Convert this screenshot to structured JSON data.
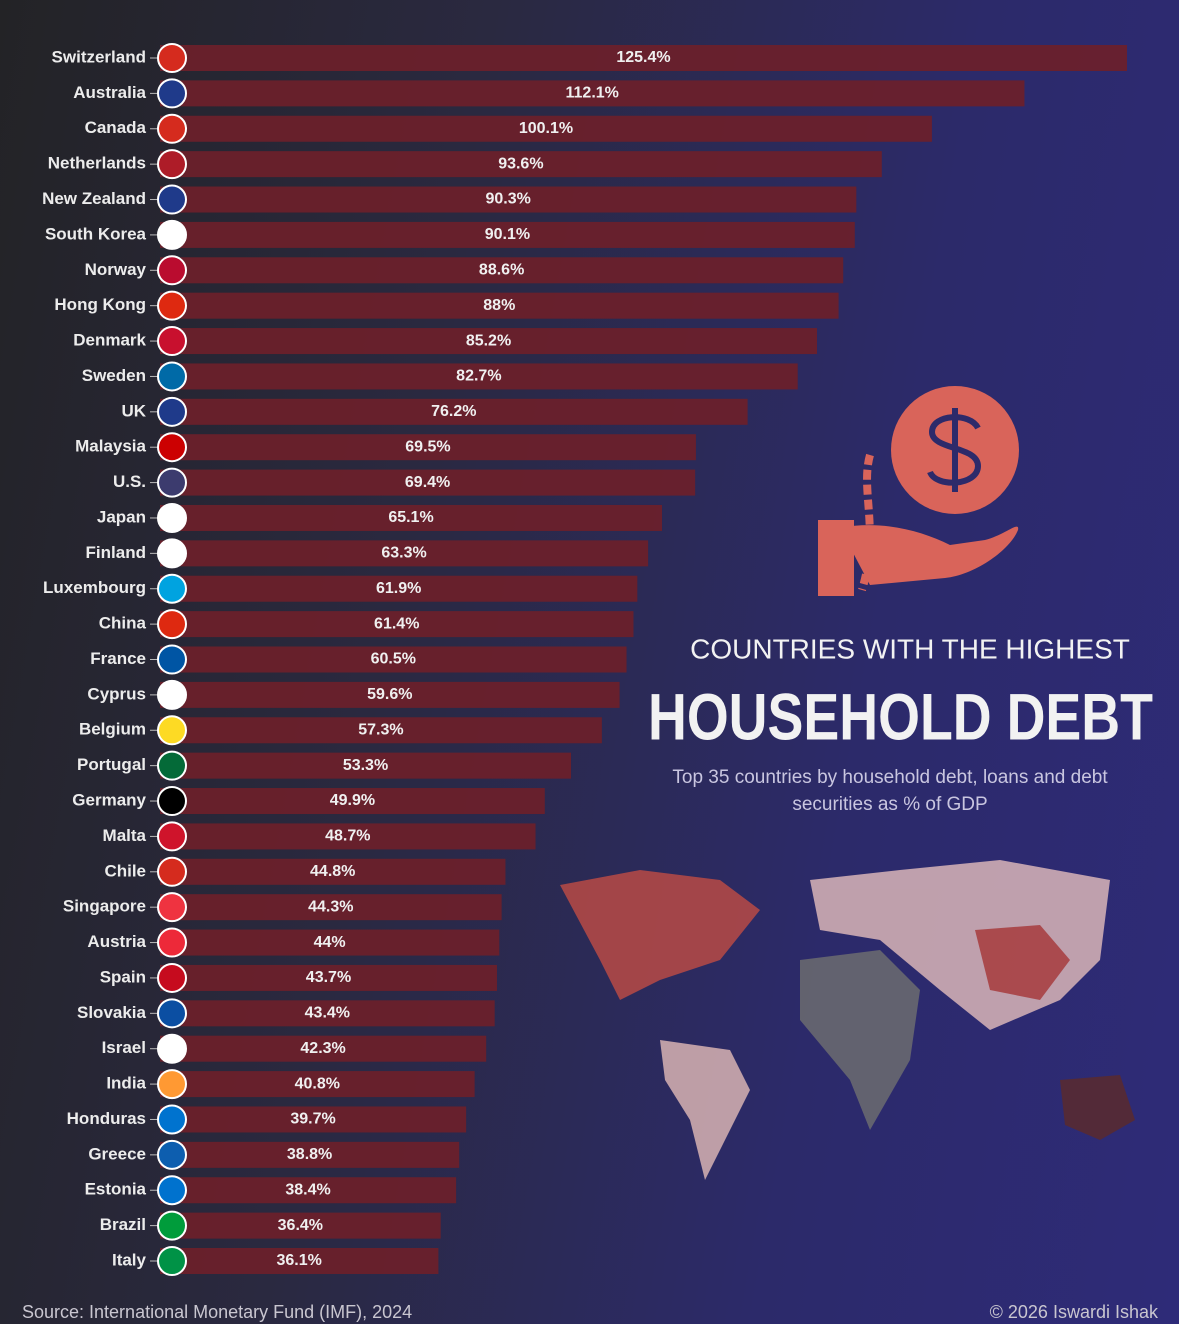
{
  "chart_data": {
    "type": "bar",
    "orientation": "horizontal",
    "title": "COUNTRIES WITH THE HIGHEST",
    "headline": "HOUSEHOLD DEBT",
    "subtitle": "Top 35 countries by household debt, loans and debt securities as % of GDP",
    "source": "Source: International Monetary Fund (IMF), 2024",
    "credit": "© 2026 Iswardi Ishak",
    "color": "#6d1f2a",
    "categories": [
      "Switzerland",
      "Australia",
      "Canada",
      "Netherlands",
      "New Zealand",
      "South Korea",
      "Norway",
      "Hong Kong",
      "Denmark",
      "Sweden",
      "UK",
      "Malaysia",
      "U.S.",
      "Japan",
      "Finland",
      "Luxembourg",
      "China",
      "France",
      "Cyprus",
      "Belgium",
      "Portugal",
      "Germany",
      "Malta",
      "Chile",
      "Singapore",
      "Austria",
      "Spain",
      "Slovakia",
      "Israel",
      "India",
      "Honduras",
      "Greece",
      "Estonia",
      "Brazil",
      "Italy"
    ],
    "values": [
      125.4,
      112.1,
      100.1,
      93.6,
      90.3,
      90.1,
      88.6,
      88,
      85.2,
      82.7,
      76.2,
      69.5,
      69.4,
      65.1,
      63.3,
      61.9,
      61.4,
      60.5,
      59.6,
      57.3,
      53.3,
      49.9,
      48.7,
      44.8,
      44.3,
      44,
      43.7,
      43.4,
      42.3,
      40.8,
      39.7,
      38.8,
      38.4,
      36.4,
      36.1
    ],
    "value_labels": [
      "125.4%",
      "112.1%",
      "100.1%",
      "93.6%",
      "90.3%",
      "90.1%",
      "88.6%",
      "88%",
      "85.2%",
      "82.7%",
      "76.2%",
      "69.5%",
      "69.4%",
      "65.1%",
      "63.3%",
      "61.9%",
      "61.4%",
      "60.5%",
      "59.6%",
      "57.3%",
      "53.3%",
      "49.9%",
      "48.7%",
      "44.8%",
      "44.3%",
      "44%",
      "43.7%",
      "43.4%",
      "42.3%",
      "40.8%",
      "39.7%",
      "38.8%",
      "38.4%",
      "36.4%",
      "36.1%"
    ]
  }
}
